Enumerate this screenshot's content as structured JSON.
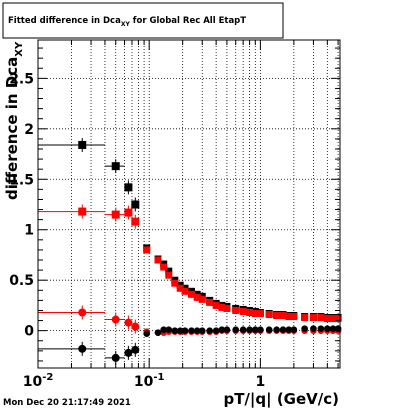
{
  "title": {
    "pre": "Fitted difference in Dca",
    "sub": "XY",
    "post": " for Global Rec All EtapT"
  },
  "timestamp": "Mon Dec 20 21:17:49 2021",
  "chart_data": {
    "type": "scatter",
    "title": "Fitted difference in Dca_XY for Global Rec All EtapT",
    "xlabel": "pT/|q| (GeV/c)",
    "ylabel": {
      "pre": "difference in Dca",
      "sub": "XY"
    },
    "xscale": "log",
    "xlim": [
      0.01,
      5.2
    ],
    "ylim": [
      -0.37,
      2.88
    ],
    "xticklabels": [
      {
        "value": 0.01,
        "base": "10",
        "exp": "-2"
      },
      {
        "value": 0.1,
        "base": "10",
        "exp": "-1"
      },
      {
        "value": 1,
        "base": "1",
        "exp": ""
      }
    ],
    "yticks": [
      0,
      0.5,
      1,
      1.5,
      2,
      2.5
    ],
    "yticklabels": [
      "0",
      "0.5",
      "1",
      "1.5",
      "2",
      "2.5"
    ],
    "grid": true,
    "series": [
      {
        "color": "#000000",
        "marker": "square",
        "x": [
          0.025,
          0.05,
          0.065,
          0.075,
          0.095,
          0.12,
          0.135,
          0.15,
          0.17,
          0.19,
          0.21,
          0.24,
          0.27,
          0.3,
          0.35,
          0.4,
          0.45,
          0.5,
          0.6,
          0.7,
          0.8,
          0.9,
          1.0,
          1.2,
          1.4,
          1.6,
          1.8,
          2.0,
          2.5,
          3.0,
          3.5,
          4.0,
          4.5,
          5.0
        ],
        "y": [
          1.84,
          1.63,
          1.42,
          1.25,
          0.82,
          0.71,
          0.66,
          0.59,
          0.5,
          0.45,
          0.42,
          0.39,
          0.36,
          0.34,
          0.3,
          0.27,
          0.25,
          0.24,
          0.22,
          0.21,
          0.2,
          0.19,
          0.18,
          0.17,
          0.16,
          0.16,
          0.15,
          0.15,
          0.14,
          0.14,
          0.14,
          0.13,
          0.13,
          0.13
        ],
        "xerr_low": [
          0.015,
          0.01,
          0.005,
          0.005
        ],
        "xerr_high": [
          0.015,
          0.01,
          0.005,
          0.005
        ]
      },
      {
        "color": "#ff0000",
        "marker": "square",
        "x": [
          0.025,
          0.05,
          0.065,
          0.075,
          0.095,
          0.12,
          0.135,
          0.15,
          0.17,
          0.19,
          0.21,
          0.24,
          0.27,
          0.3,
          0.35,
          0.4,
          0.45,
          0.5,
          0.6,
          0.7,
          0.8,
          0.9,
          1.0,
          1.2,
          1.4,
          1.6,
          1.8,
          2.0,
          2.5,
          3.0,
          3.5,
          4.0,
          4.5,
          5.0
        ],
        "y": [
          1.18,
          1.15,
          1.17,
          1.08,
          0.8,
          0.7,
          0.63,
          0.55,
          0.47,
          0.42,
          0.39,
          0.36,
          0.33,
          0.31,
          0.28,
          0.25,
          0.23,
          0.22,
          0.2,
          0.19,
          0.18,
          0.17,
          0.17,
          0.16,
          0.15,
          0.15,
          0.14,
          0.14,
          0.13,
          0.13,
          0.13,
          0.12,
          0.12,
          0.12
        ],
        "xerr_low": [
          0.015,
          0.01,
          0.005,
          0.005
        ],
        "xerr_high": [
          0.015,
          0.01,
          0.005,
          0.005
        ]
      },
      {
        "color": "#ff0000",
        "marker": "circle",
        "x": [
          0.025,
          0.05,
          0.065,
          0.075,
          0.095,
          0.12,
          0.135,
          0.15,
          0.17,
          0.19,
          0.21,
          0.24,
          0.27,
          0.3,
          0.35,
          0.4,
          0.45,
          0.5,
          0.6,
          0.7,
          0.8,
          0.9,
          1.0,
          1.2,
          1.4,
          1.6,
          1.8,
          2.0,
          2.5,
          3.0,
          3.5,
          4.0,
          4.5,
          5.0
        ],
        "y": [
          0.18,
          0.11,
          0.08,
          0.04,
          -0.01,
          -0.02,
          -0.02,
          -0.01,
          -0.01,
          -0.01,
          -0.01,
          -0.01,
          -0.01,
          -0.01,
          -0.01,
          -0.01,
          0.0,
          0.0,
          0.0,
          0.0,
          0.0,
          0.0,
          0.0,
          0.0,
          0.0,
          0.0,
          0.0,
          0.0,
          0.0,
          0.0,
          0.0,
          0.0,
          0.0,
          0.0
        ],
        "xerr_low": [
          0.015,
          0.01,
          0.005,
          0.005
        ],
        "xerr_high": [
          0.015,
          0.01,
          0.005,
          0.005
        ]
      },
      {
        "color": "#000000",
        "marker": "circle",
        "x": [
          0.025,
          0.05,
          0.065,
          0.075,
          0.095,
          0.12,
          0.135,
          0.15,
          0.17,
          0.19,
          0.21,
          0.24,
          0.27,
          0.3,
          0.35,
          0.4,
          0.45,
          0.5,
          0.6,
          0.7,
          0.8,
          0.9,
          1.0,
          1.2,
          1.4,
          1.6,
          1.8,
          2.0,
          2.5,
          3.0,
          3.5,
          4.0,
          4.5,
          5.0
        ],
        "y": [
          -0.18,
          -0.27,
          -0.22,
          -0.19,
          -0.03,
          -0.02,
          0.01,
          0.01,
          0.0,
          0.0,
          0.0,
          0.0,
          0.0,
          0.0,
          0.0,
          0.0,
          0.01,
          0.01,
          0.01,
          0.01,
          0.01,
          0.01,
          0.01,
          0.01,
          0.01,
          0.01,
          0.01,
          0.01,
          0.02,
          0.02,
          0.02,
          0.02,
          0.02,
          0.02
        ],
        "xerr_low": [
          0.015,
          0.01,
          0.005,
          0.005
        ],
        "xerr_high": [
          0.015,
          0.01,
          0.005,
          0.005
        ]
      }
    ]
  }
}
